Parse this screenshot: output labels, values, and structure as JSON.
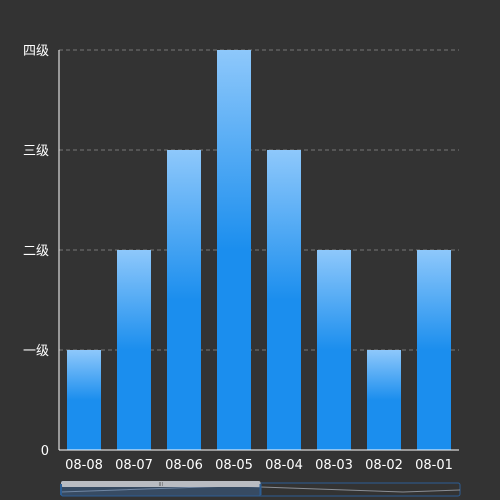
{
  "chart_data": {
    "type": "bar",
    "categories": [
      "08-08",
      "08-07",
      "08-06",
      "08-05",
      "08-04",
      "08-03",
      "08-02",
      "08-01"
    ],
    "values": [
      1,
      2,
      3,
      4,
      3,
      2,
      1,
      2
    ],
    "y_ticks": [
      {
        "value": 0,
        "label": "0"
      },
      {
        "value": 1,
        "label": "一级"
      },
      {
        "value": 2,
        "label": "二级"
      },
      {
        "value": 3,
        "label": "三级"
      },
      {
        "value": 4,
        "label": "四级"
      }
    ],
    "ylim": [
      0,
      4
    ],
    "grid": true,
    "title": "",
    "xlabel": "",
    "ylabel": ""
  },
  "data_zoom": {
    "handle_label": "III",
    "window_start": 0,
    "window_end": 0.5
  },
  "colors": {
    "background": "#333333",
    "bar_top": "#8EC8FB",
    "bar_bottom": "#1B8EEE",
    "axis": "#FFFFFF",
    "grid": "#777777",
    "text": "#FFFFFF",
    "slider_border": "#2C5E94",
    "slider_window": "#B9BCC2"
  }
}
